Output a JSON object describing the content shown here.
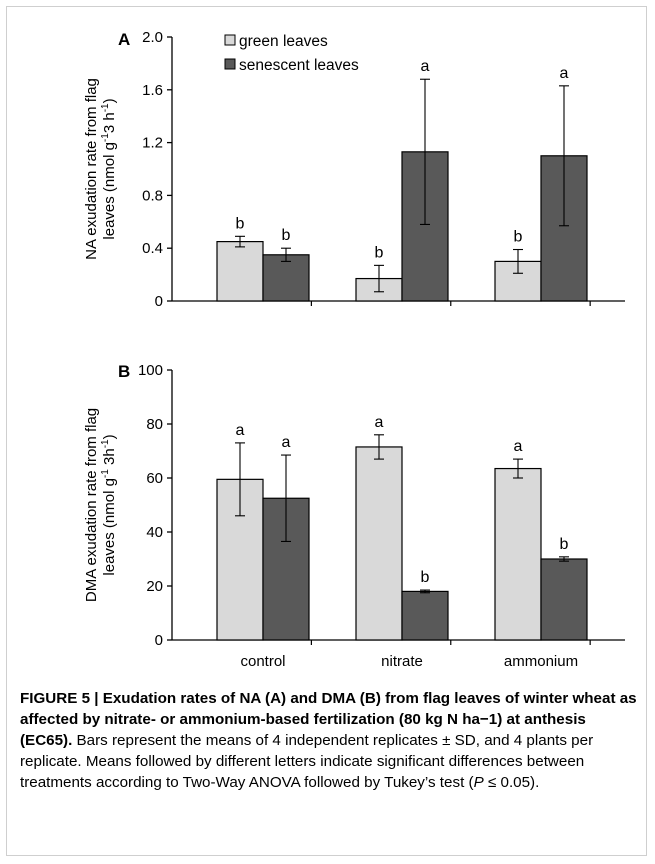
{
  "colors": {
    "green": "#d9d9d9",
    "senescent": "#595959",
    "axis": "#000000"
  },
  "chart_data": [
    {
      "type": "bar",
      "panel_label": "A",
      "categories": [
        "control",
        "nitrate",
        "ammonium"
      ],
      "ylabel_line1": "NA exudation rate from flag",
      "ylabel_line2_pre": "leaves (nmol g",
      "ylabel_line2_sup1": "-1",
      "ylabel_line2_mid": "3 h",
      "ylabel_line2_sup2": "-1",
      "ylabel_line2_post": ")",
      "ylim": [
        0,
        2.0
      ],
      "yticks": [
        0,
        0.4,
        0.8,
        1.2,
        1.6,
        2.0
      ],
      "ytick_labels": [
        "0",
        "0.4",
        "0.8",
        "1.2",
        "1.6",
        "2.0"
      ],
      "legend": [
        "green leaves",
        "senescent leaves"
      ],
      "legend_position": "top-left",
      "series": [
        {
          "name": "green leaves",
          "values": [
            0.45,
            0.17,
            0.3
          ],
          "sd": [
            0.04,
            0.1,
            0.09
          ],
          "letters": [
            "b",
            "b",
            "b"
          ]
        },
        {
          "name": "senescent leaves",
          "values": [
            0.35,
            1.13,
            1.1
          ],
          "sd": [
            0.05,
            0.55,
            0.53
          ],
          "letters": [
            "b",
            "a",
            "a"
          ]
        }
      ]
    },
    {
      "type": "bar",
      "panel_label": "B",
      "categories": [
        "control",
        "nitrate",
        "ammonium"
      ],
      "ylabel_line1": "DMA exudation rate from flag",
      "ylabel_line2_pre": "leaves (nmol g",
      "ylabel_line2_sup1": "-1",
      "ylabel_line2_mid": " 3h",
      "ylabel_line2_sup2": "-1",
      "ylabel_line2_post": ")",
      "ylim": [
        0,
        100
      ],
      "yticks": [
        0,
        20,
        40,
        60,
        80,
        100
      ],
      "ytick_labels": [
        "0",
        "20",
        "40",
        "60",
        "80",
        "100"
      ],
      "series": [
        {
          "name": "green leaves",
          "values": [
            59.5,
            71.5,
            63.5
          ],
          "sd": [
            13.5,
            4.5,
            3.5
          ],
          "letters": [
            "a",
            "a",
            "a"
          ]
        },
        {
          "name": "senescent leaves",
          "values": [
            52.5,
            18.0,
            30.0
          ],
          "sd": [
            16.0,
            0.5,
            0.8
          ],
          "letters": [
            "a",
            "b",
            "b"
          ]
        }
      ]
    }
  ],
  "caption": {
    "title": "FIGURE 5 | Exudation rates of NA (A) and DMA (B) from flag leaves of winter wheat as affected by nitrate- or ammonium-based fertilization (80 kg N ha−1) at anthesis (EC65).",
    "body_pre": " Bars represent the means of 4 independent replicates ± SD, and 4 plants per replicate. Means followed by different letters indicate significant differences between treatments according to Two-Way ANOVA followed by Tukey’s test (",
    "body_italic": "P",
    "body_post": " ≤ 0.05)."
  }
}
